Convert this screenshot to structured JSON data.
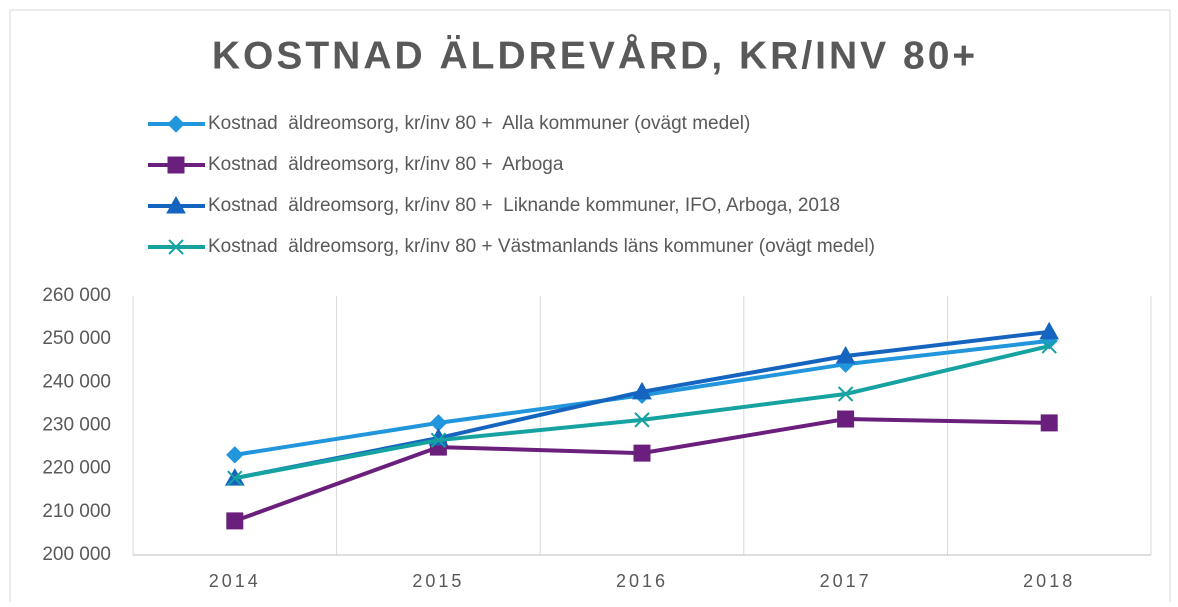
{
  "chart_data": {
    "type": "line",
    "title": "KOSTNAD ÄLDREVÅRD, KR/INV 80+",
    "categories": [
      "2014",
      "2015",
      "2016",
      "2017",
      "2018"
    ],
    "series": [
      {
        "name": "Kostnad  äldreomsorg, kr/inv 80 +  Alla kommuner (ovägt medel)",
        "color": "#2196dc",
        "marker": "diamond",
        "values": [
          223200,
          230600,
          237000,
          244200,
          249600
        ]
      },
      {
        "name": "Kostnad  äldreomsorg, kr/inv 80 +  Arboga",
        "color": "#6b1f7c",
        "marker": "square",
        "values": [
          207900,
          225000,
          223600,
          231500,
          230600
        ]
      },
      {
        "name": "Kostnad  äldreomsorg, kr/inv 80 +  Liknande kommuner, IFO, Arboga, 2018",
        "color": "#1565c0",
        "marker": "triangle",
        "values": [
          217800,
          227100,
          237800,
          246100,
          251700
        ]
      },
      {
        "name": "Kostnad  äldreomsorg, kr/inv 80 + Västmanlands läns kommuner (ovägt medel)",
        "color": "#17a2a2",
        "marker": "x",
        "values": [
          217800,
          226600,
          231300,
          237300,
          248400
        ]
      }
    ],
    "ylim": [
      200000,
      260000
    ],
    "yticks": [
      {
        "value": 200000,
        "label": "200 000"
      },
      {
        "value": 210000,
        "label": "210 000"
      },
      {
        "value": 220000,
        "label": "220 000"
      },
      {
        "value": 230000,
        "label": "230 000"
      },
      {
        "value": 240000,
        "label": "240 000"
      },
      {
        "value": 250000,
        "label": "250 000"
      },
      {
        "value": 260000,
        "label": "260 000"
      }
    ],
    "grid": "x",
    "legend": "top"
  }
}
